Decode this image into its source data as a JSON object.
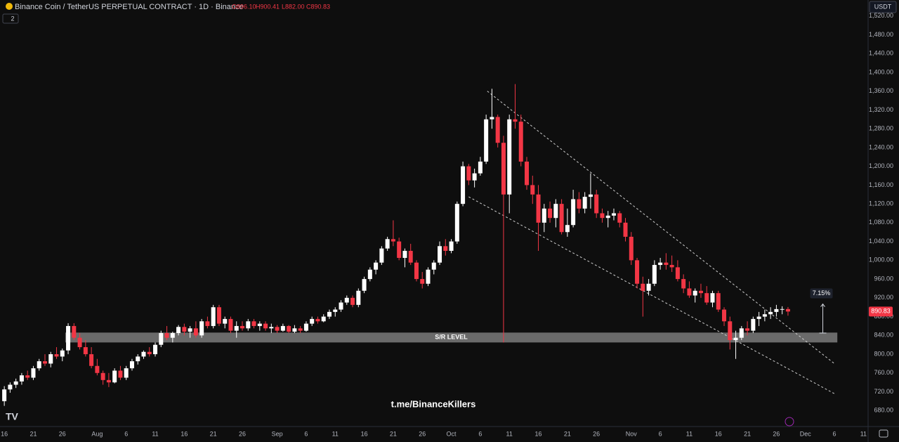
{
  "chart_data": {
    "type": "candlestick",
    "title": "Binance Coin / TetherUS PERPETUAL CONTRACT · 1D · Binance",
    "ohlc_header": [
      "O896.10",
      "H900.41",
      "L882.00",
      "C890.83"
    ],
    "indicator_badge": "2",
    "currency": "USDT",
    "watermark": "t.me/BinanceKillers",
    "up_color": "#ffffff",
    "down_color": "#f23645",
    "ohlc": [
      [
        700,
        732,
        690,
        725
      ],
      [
        725,
        740,
        718,
        735
      ],
      [
        735,
        748,
        728,
        742
      ],
      [
        742,
        760,
        735,
        755
      ],
      [
        755,
        765,
        745,
        750
      ],
      [
        750,
        775,
        745,
        770
      ],
      [
        770,
        790,
        765,
        785
      ],
      [
        785,
        800,
        775,
        780
      ],
      [
        780,
        805,
        772,
        800
      ],
      [
        800,
        815,
        790,
        795
      ],
      [
        795,
        812,
        785,
        808
      ],
      [
        808,
        866,
        800,
        860
      ],
      [
        860,
        866,
        830,
        835
      ],
      [
        835,
        845,
        810,
        815
      ],
      [
        815,
        830,
        795,
        800
      ],
      [
        800,
        815,
        770,
        775
      ],
      [
        775,
        790,
        755,
        760
      ],
      [
        760,
        765,
        735,
        745
      ],
      [
        745,
        760,
        730,
        740
      ],
      [
        740,
        770,
        738,
        765
      ],
      [
        765,
        775,
        745,
        750
      ],
      [
        750,
        775,
        745,
        770
      ],
      [
        770,
        790,
        765,
        785
      ],
      [
        785,
        800,
        778,
        795
      ],
      [
        795,
        808,
        790,
        805
      ],
      [
        805,
        815,
        795,
        800
      ],
      [
        800,
        825,
        795,
        820
      ],
      [
        820,
        850,
        815,
        845
      ],
      [
        845,
        860,
        830,
        835
      ],
      [
        835,
        848,
        825,
        845
      ],
      [
        845,
        862,
        840,
        858
      ],
      [
        858,
        865,
        840,
        848
      ],
      [
        848,
        860,
        835,
        855
      ],
      [
        855,
        870,
        835,
        840
      ],
      [
        840,
        875,
        835,
        870
      ],
      [
        870,
        880,
        855,
        860
      ],
      [
        860,
        905,
        855,
        900
      ],
      [
        900,
        905,
        860,
        865
      ],
      [
        865,
        880,
        855,
        875
      ],
      [
        875,
        880,
        845,
        850
      ],
      [
        850,
        870,
        835,
        860
      ],
      [
        860,
        870,
        850,
        855
      ],
      [
        855,
        875,
        850,
        870
      ],
      [
        870,
        875,
        855,
        860
      ],
      [
        860,
        870,
        850,
        865
      ],
      [
        865,
        870,
        850,
        855
      ],
      [
        855,
        865,
        845,
        858
      ],
      [
        858,
        862,
        845,
        850
      ],
      [
        850,
        865,
        848,
        860
      ],
      [
        860,
        862,
        845,
        848
      ],
      [
        848,
        862,
        845,
        855
      ],
      [
        855,
        860,
        845,
        850
      ],
      [
        850,
        870,
        848,
        865
      ],
      [
        865,
        880,
        860,
        875
      ],
      [
        875,
        880,
        865,
        870
      ],
      [
        870,
        885,
        868,
        880
      ],
      [
        880,
        895,
        875,
        890
      ],
      [
        890,
        900,
        880,
        895
      ],
      [
        895,
        915,
        890,
        910
      ],
      [
        910,
        925,
        905,
        920
      ],
      [
        920,
        925,
        900,
        905
      ],
      [
        905,
        940,
        900,
        935
      ],
      [
        935,
        965,
        930,
        960
      ],
      [
        960,
        985,
        955,
        980
      ],
      [
        980,
        1000,
        970,
        995
      ],
      [
        995,
        1030,
        990,
        1025
      ],
      [
        1025,
        1050,
        1020,
        1045
      ],
      [
        1045,
        1085,
        1030,
        1040
      ],
      [
        1040,
        1048,
        1000,
        1005
      ],
      [
        1005,
        1025,
        985,
        1020
      ],
      [
        1020,
        1035,
        990,
        995
      ],
      [
        995,
        1000,
        955,
        960
      ],
      [
        960,
        975,
        940,
        950
      ],
      [
        950,
        985,
        945,
        980
      ],
      [
        980,
        1000,
        970,
        995
      ],
      [
        995,
        1040,
        990,
        1030
      ],
      [
        1030,
        1045,
        1010,
        1020
      ],
      [
        1020,
        1045,
        1015,
        1040
      ],
      [
        1040,
        1125,
        1035,
        1120
      ],
      [
        1120,
        1210,
        1115,
        1200
      ],
      [
        1200,
        1205,
        1160,
        1170
      ],
      [
        1170,
        1195,
        1155,
        1185
      ],
      [
        1185,
        1220,
        1180,
        1210
      ],
      [
        1210,
        1310,
        1205,
        1300
      ],
      [
        1300,
        1365,
        1280,
        1305
      ],
      [
        1305,
        1310,
        1240,
        1250
      ],
      [
        1250,
        1265,
        825,
        1140
      ],
      [
        1140,
        1310,
        1100,
        1300
      ],
      [
        1300,
        1375,
        1280,
        1295
      ],
      [
        1295,
        1310,
        1200,
        1210
      ],
      [
        1210,
        1220,
        1150,
        1160
      ],
      [
        1160,
        1180,
        1120,
        1140
      ],
      [
        1140,
        1160,
        1020,
        1080
      ],
      [
        1080,
        1120,
        1060,
        1110
      ],
      [
        1110,
        1125,
        1080,
        1090
      ],
      [
        1090,
        1130,
        1070,
        1120
      ],
      [
        1120,
        1130,
        1055,
        1060
      ],
      [
        1060,
        1110,
        1050,
        1075
      ],
      [
        1075,
        1150,
        1070,
        1130
      ],
      [
        1130,
        1145,
        1100,
        1110
      ],
      [
        1110,
        1145,
        1100,
        1135
      ],
      [
        1135,
        1185,
        1110,
        1140
      ],
      [
        1140,
        1150,
        1090,
        1100
      ],
      [
        1100,
        1110,
        1080,
        1090
      ],
      [
        1090,
        1105,
        1070,
        1095
      ],
      [
        1095,
        1110,
        1085,
        1100
      ],
      [
        1100,
        1105,
        1070,
        1080
      ],
      [
        1080,
        1090,
        1040,
        1050
      ],
      [
        1050,
        1060,
        990,
        1000
      ],
      [
        1000,
        1005,
        940,
        950
      ],
      [
        950,
        965,
        880,
        935
      ],
      [
        935,
        960,
        925,
        950
      ],
      [
        950,
        1000,
        945,
        990
      ],
      [
        990,
        1005,
        980,
        995
      ],
      [
        995,
        1015,
        980,
        990
      ],
      [
        990,
        1010,
        975,
        985
      ],
      [
        985,
        1000,
        955,
        960
      ],
      [
        960,
        970,
        930,
        940
      ],
      [
        940,
        955,
        920,
        925
      ],
      [
        925,
        940,
        910,
        935
      ],
      [
        935,
        950,
        920,
        930
      ],
      [
        930,
        945,
        905,
        910
      ],
      [
        910,
        935,
        900,
        930
      ],
      [
        930,
        935,
        890,
        895
      ],
      [
        895,
        900,
        860,
        870
      ],
      [
        870,
        880,
        810,
        830
      ],
      [
        830,
        850,
        790,
        835
      ],
      [
        835,
        860,
        830,
        855
      ],
      [
        855,
        870,
        840,
        850
      ],
      [
        850,
        880,
        845,
        875
      ],
      [
        875,
        890,
        860,
        880
      ],
      [
        880,
        895,
        870,
        885
      ],
      [
        885,
        900,
        875,
        890
      ],
      [
        890,
        905,
        880,
        896
      ],
      [
        896,
        902,
        885,
        896.1
      ],
      [
        896.1,
        900.41,
        882,
        890.83
      ]
    ],
    "xlim": [
      -0.5,
      148.8
    ],
    "xticks": [
      {
        "value": 0,
        "label": "16"
      },
      {
        "value": 5,
        "label": "21"
      },
      {
        "value": 10,
        "label": "26"
      },
      {
        "value": 16,
        "label": "Aug"
      },
      {
        "value": 21,
        "label": "6"
      },
      {
        "value": 26,
        "label": "11"
      },
      {
        "value": 31,
        "label": "16"
      },
      {
        "value": 36,
        "label": "21"
      },
      {
        "value": 41,
        "label": "26"
      },
      {
        "value": 47,
        "label": "Sep"
      },
      {
        "value": 52,
        "label": "6"
      },
      {
        "value": 57,
        "label": "11"
      },
      {
        "value": 62,
        "label": "16"
      },
      {
        "value": 67,
        "label": "21"
      },
      {
        "value": 72,
        "label": "26"
      },
      {
        "value": 77,
        "label": "Oct"
      },
      {
        "value": 82,
        "label": "6"
      },
      {
        "value": 87,
        "label": "11"
      },
      {
        "value": 92,
        "label": "16"
      },
      {
        "value": 97,
        "label": "21"
      },
      {
        "value": 102,
        "label": "26"
      },
      {
        "value": 108,
        "label": "Nov"
      },
      {
        "value": 113,
        "label": "6"
      },
      {
        "value": 118,
        "label": "11"
      },
      {
        "value": 123,
        "label": "16"
      },
      {
        "value": 128,
        "label": "21"
      },
      {
        "value": 133,
        "label": "26"
      },
      {
        "value": 138,
        "label": "Dec"
      },
      {
        "value": 143,
        "label": "6"
      },
      {
        "value": 148,
        "label": "11"
      }
    ],
    "ylim": [
      646,
      1554
    ],
    "yticks": [
      {
        "value": 680,
        "label": "680.00"
      },
      {
        "value": 720,
        "label": "720.00"
      },
      {
        "value": 760,
        "label": "760.00"
      },
      {
        "value": 800,
        "label": "800.00"
      },
      {
        "value": 840,
        "label": "840.00"
      },
      {
        "value": 880,
        "label": "880.00"
      },
      {
        "value": 920,
        "label": "920.00"
      },
      {
        "value": 960,
        "label": "960.00"
      },
      {
        "value": 1000,
        "label": "1,000.00"
      },
      {
        "value": 1040,
        "label": "1,040.00"
      },
      {
        "value": 1080,
        "label": "1,080.00"
      },
      {
        "value": 1120,
        "label": "1,120.00"
      },
      {
        "value": 1160,
        "label": "1,160.00"
      },
      {
        "value": 1200,
        "label": "1,200.00"
      },
      {
        "value": 1240,
        "label": "1,240.00"
      },
      {
        "value": 1280,
        "label": "1,280.00"
      },
      {
        "value": 1320,
        "label": "1,320.00"
      },
      {
        "value": 1360,
        "label": "1,360.00"
      },
      {
        "value": 1400,
        "label": "1,400.00"
      },
      {
        "value": 1440,
        "label": "1,440.00"
      },
      {
        "value": 1480,
        "label": "1,480.00"
      },
      {
        "value": 1520,
        "label": "1,520.00"
      }
    ],
    "grid": false,
    "sr_level": {
      "label": "S/R LEVEL",
      "range": [
        825,
        846
      ],
      "x": [
        10.5,
        143.5
      ]
    },
    "trendlines": [
      [
        [
          83.2,
          1360
        ],
        [
          143,
          780
        ]
      ],
      [
        [
          80,
          1135
        ],
        [
          143,
          716
        ]
      ]
    ],
    "measure": {
      "label": "7.15%",
      "x": 141,
      "range": [
        845,
        907
      ]
    }
  }
}
